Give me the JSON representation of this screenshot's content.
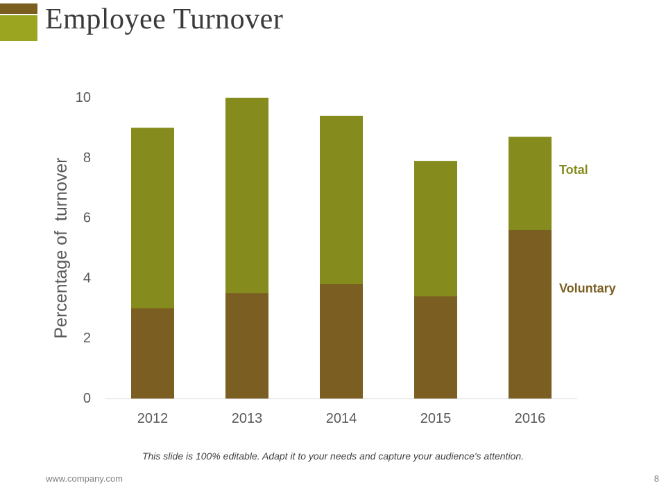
{
  "slide": {
    "title": "Employee Turnover",
    "caption": "This slide is 100% editable. Adapt it to your needs and capture your audience's attention.",
    "footer_url": "www.company.com",
    "page_number": "8"
  },
  "colors": {
    "accent_brown": "#7a5f21",
    "accent_olive": "#9ba51f",
    "total": "#858b1c",
    "voluntary": "#7b5f22"
  },
  "chart_data": {
    "type": "bar",
    "stacked": true,
    "title": "",
    "xlabel": "",
    "ylabel": "Percentage of  turnover",
    "categories": [
      "2012",
      "2013",
      "2014",
      "2015",
      "2016"
    ],
    "ylim": [
      0,
      10
    ],
    "yticks": [
      0,
      2,
      4,
      6,
      8,
      10
    ],
    "grid": false,
    "series": [
      {
        "name": "Voluntary",
        "values": [
          3.0,
          3.5,
          3.8,
          3.4,
          5.6
        ],
        "color": "#7b5f22"
      },
      {
        "name": "Total",
        "values": [
          9.0,
          10.0,
          9.4,
          7.9,
          8.7
        ],
        "color": "#858b1c"
      }
    ],
    "legend": [
      {
        "label": "Total",
        "color": "#858b1c"
      },
      {
        "label": "Voluntary",
        "color": "#7b5f22"
      }
    ]
  }
}
